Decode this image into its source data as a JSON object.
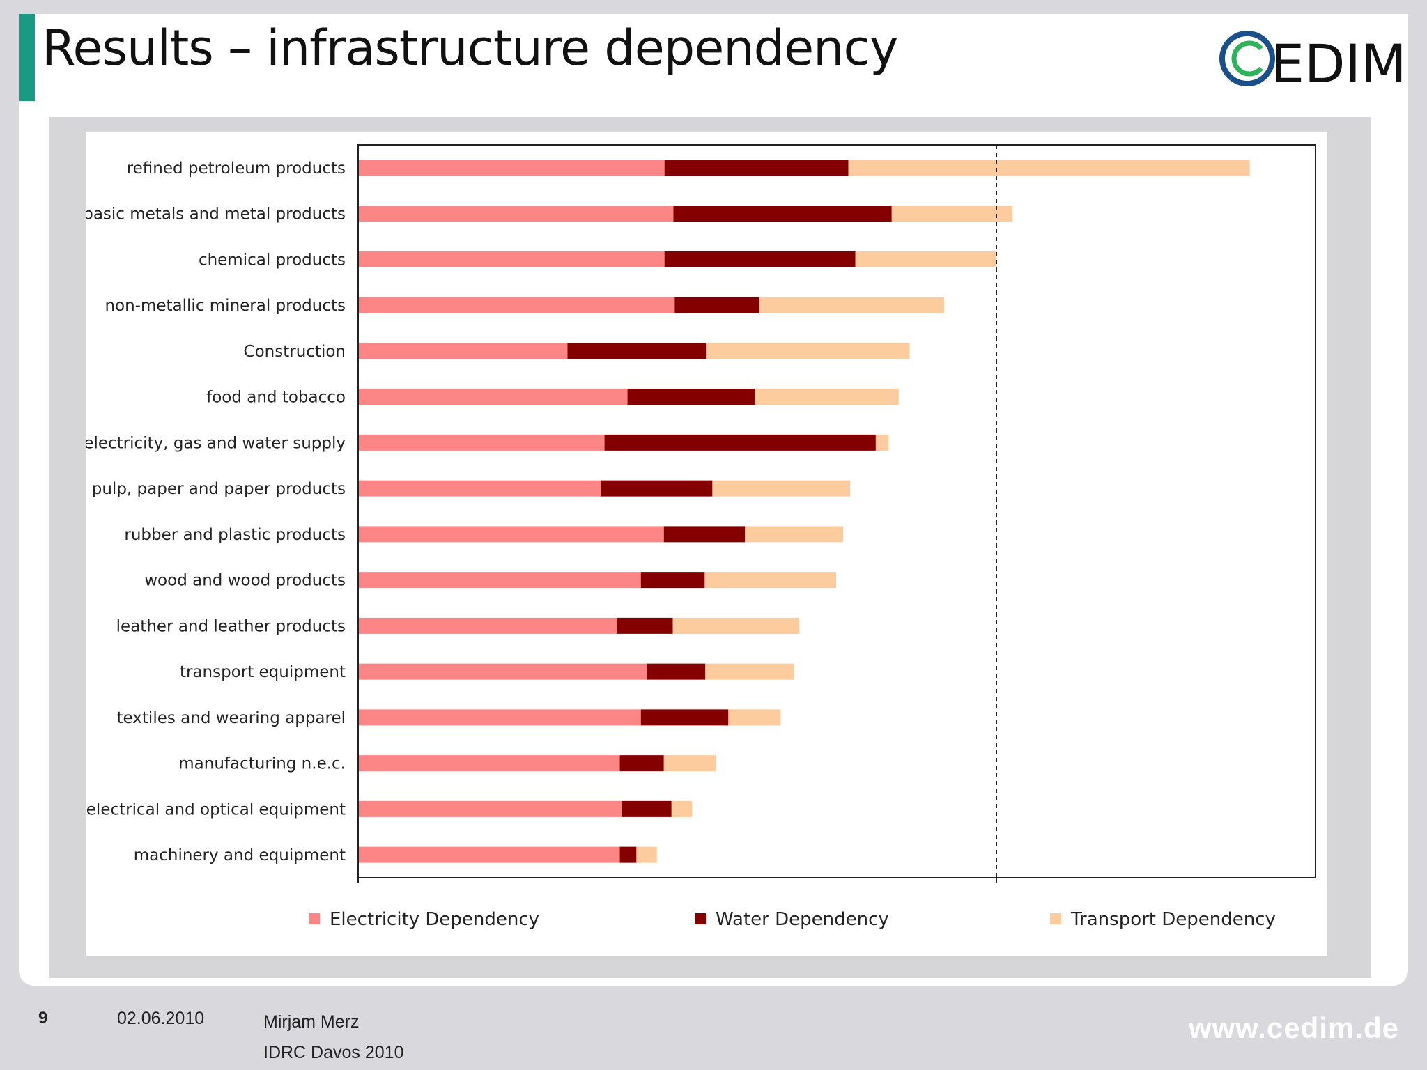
{
  "slide": {
    "title": "Results – infrastructure dependency",
    "logo_text": "EDIM",
    "accent_color": "#1a9a83",
    "logo_ring_outer": "#1a4f8a",
    "logo_ring_inner": "#2fb25a"
  },
  "footer": {
    "page_number": "9",
    "date": "02.06.2010",
    "author": "Mirjam Merz",
    "event": "IDRC Davos 2010",
    "url": "www.cedim.de"
  },
  "chart_data": {
    "type": "bar",
    "orientation": "horizontal",
    "stacked": true,
    "title": "",
    "xlabel": "",
    "ylabel": "",
    "xlim": [
      0,
      1.5
    ],
    "reference_line": 1.0,
    "grid": false,
    "legend_position": "bottom",
    "colors": {
      "Electricity Dependency": "#fc8686",
      "Water Dependency": "#840000",
      "Transport Dependency": "#fdcc9e"
    },
    "categories": [
      "refined petroleum products",
      "basic metals and metal products",
      "chemical products",
      "non-metallic mineral products",
      "Construction",
      "food and tobacco",
      "electricity, gas and water supply",
      "pulp, paper and paper products",
      "rubber and plastic products",
      "wood and wood products",
      "leather and leather products",
      "transport equipment",
      "textiles and wearing apparel",
      "manufacturing n.e.c.",
      "electrical and optical equipment",
      "machinery and equipment"
    ],
    "series": [
      {
        "name": "Electricity Dependency",
        "values": [
          0.48,
          0.494,
          0.48,
          0.496,
          0.328,
          0.422,
          0.386,
          0.38,
          0.479,
          0.443,
          0.405,
          0.453,
          0.443,
          0.41,
          0.413,
          0.41
        ]
      },
      {
        "name": "Water Dependency",
        "values": [
          0.288,
          0.342,
          0.299,
          0.133,
          0.217,
          0.2,
          0.425,
          0.175,
          0.127,
          0.1,
          0.088,
          0.091,
          0.137,
          0.069,
          0.078,
          0.026
        ]
      },
      {
        "name": "Transport Dependency",
        "values": [
          0.629,
          0.189,
          0.22,
          0.289,
          0.319,
          0.225,
          0.02,
          0.216,
          0.154,
          0.206,
          0.198,
          0.139,
          0.082,
          0.081,
          0.032,
          0.032
        ]
      }
    ]
  }
}
